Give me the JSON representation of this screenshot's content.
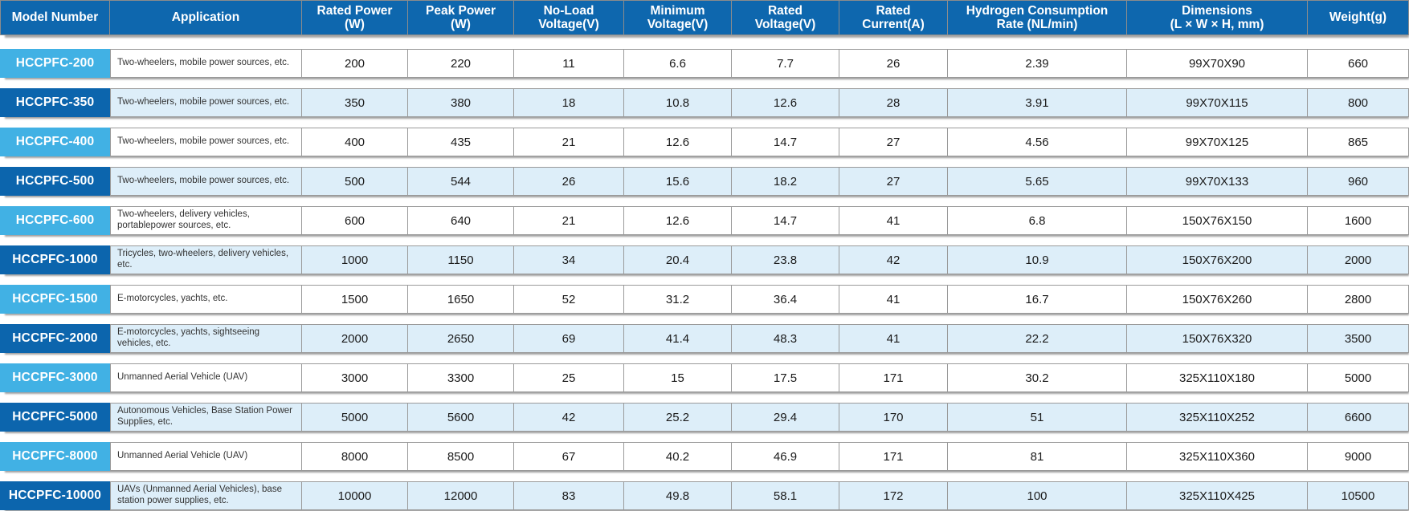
{
  "colors": {
    "header_bg": "#0e67ae",
    "model_cell_light": "#41b1e4",
    "model_cell_dark": "#0c65ad",
    "row_alt_bg": "#ddeef9",
    "row_bg": "#ffffff",
    "cell_border": "#9a9a9a",
    "header_text": "#ffffff",
    "value_text": "#1a1a1a"
  },
  "chart_data": {
    "type": "table",
    "columns": [
      "Model Number",
      "Application",
      "Rated Power\n(W)",
      "Peak Power\n(W)",
      "No-Load\nVoltage(V)",
      "Minimum\nVoltage(V)",
      "Rated\nVoltage(V)",
      "Rated\nCurrent(A)",
      "Hydrogen Consumption\nRate (NL/min)",
      "Dimensions\n(L × W × H, mm)",
      "Weight(g)"
    ],
    "rows": [
      [
        "HCCPFC-200",
        "Two-wheelers, mobile power sources, etc.",
        "200",
        "220",
        "11",
        "6.6",
        "7.7",
        "26",
        "2.39",
        "99X70X90",
        "660"
      ],
      [
        "HCCPFC-350",
        "Two-wheelers, mobile power sources, etc.",
        "350",
        "380",
        "18",
        "10.8",
        "12.6",
        "28",
        "3.91",
        "99X70X115",
        "800"
      ],
      [
        "HCCPFC-400",
        "Two-wheelers, mobile power sources, etc.",
        "400",
        "435",
        "21",
        "12.6",
        "14.7",
        "27",
        "4.56",
        "99X70X125",
        "865"
      ],
      [
        "HCCPFC-500",
        "Two-wheelers, mobile power sources, etc.",
        "500",
        "544",
        "26",
        "15.6",
        "18.2",
        "27",
        "5.65",
        "99X70X133",
        "960"
      ],
      [
        "HCCPFC-600",
        "Two-wheelers, delivery vehicles, portablepower sources, etc.",
        "600",
        "640",
        "21",
        "12.6",
        "14.7",
        "41",
        "6.8",
        "150X76X150",
        "1600"
      ],
      [
        "HCCPFC-1000",
        "Tricycles, two-wheelers, delivery vehicles, etc.",
        "1000",
        "1150",
        "34",
        "20.4",
        "23.8",
        "42",
        "10.9",
        "150X76X200",
        "2000"
      ],
      [
        "HCCPFC-1500",
        "E-motorcycles, yachts, etc.",
        "1500",
        "1650",
        "52",
        "31.2",
        "36.4",
        "41",
        "16.7",
        "150X76X260",
        "2800"
      ],
      [
        "HCCPFC-2000",
        "E-motorcycles, yachts, sightseeing vehicles, etc.",
        "2000",
        "2650",
        "69",
        "41.4",
        "48.3",
        "41",
        "22.2",
        "150X76X320",
        "3500"
      ],
      [
        "HCCPFC-3000",
        "Unmanned Aerial Vehicle (UAV)",
        "3000",
        "3300",
        "25",
        "15",
        "17.5",
        "171",
        "30.2",
        "325X110X180",
        "5000"
      ],
      [
        "HCCPFC-5000",
        "Autonomous Vehicles, Base Station Power Supplies, etc.",
        "5000",
        "5600",
        "42",
        "25.2",
        "29.4",
        "170",
        "51",
        "325X110X252",
        "6600"
      ],
      [
        "HCCPFC-8000",
        "Unmanned Aerial Vehicle (UAV)",
        "8000",
        "8500",
        "67",
        "40.2",
        "46.9",
        "171",
        "81",
        "325X110X360",
        "9000"
      ],
      [
        "HCCPFC-10000",
        "UAVs (Unmanned Aerial Vehicles), base station power supplies, etc.",
        "10000",
        "12000",
        "83",
        "49.8",
        "58.1",
        "172",
        "100",
        "325X110X425",
        "10500"
      ]
    ]
  }
}
